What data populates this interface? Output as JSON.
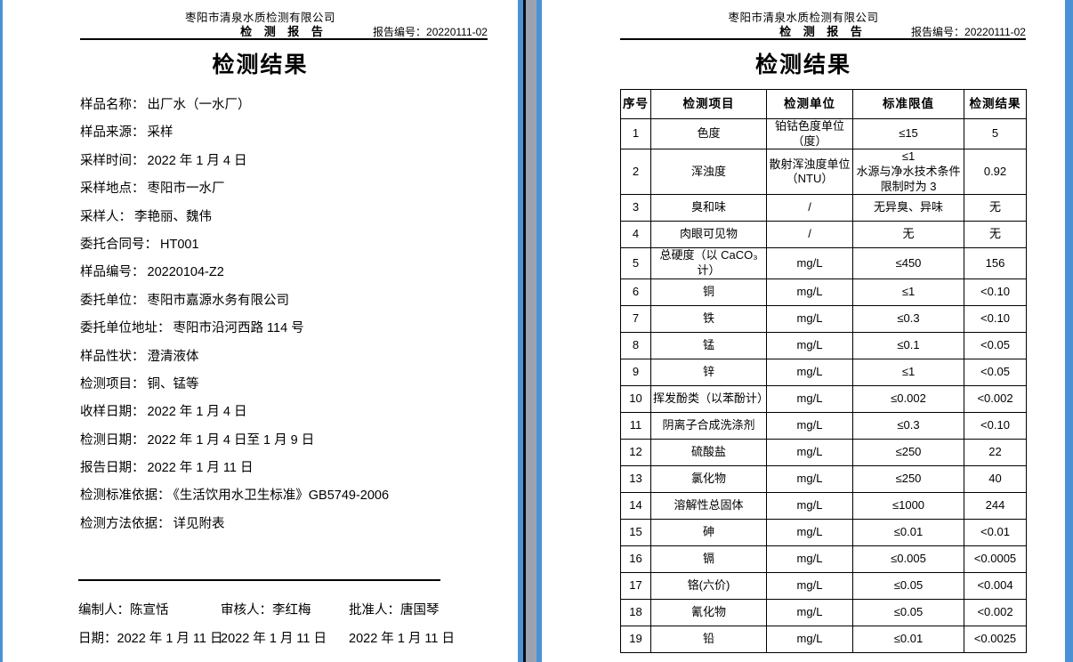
{
  "page_left": {
    "header": {
      "company": "枣阳市清泉水质检测有限公司",
      "doc_title": "检 测 报 告",
      "report_no": "报告编号：20220111-02"
    },
    "title": "检测结果",
    "fields": [
      {
        "label": "样品名称：",
        "value": "出厂水（一水厂）"
      },
      {
        "label": "样品来源：",
        "value": "采样"
      },
      {
        "label": "采样时间：",
        "value": "2022 年 1 月 4 日"
      },
      {
        "label": "采样地点：",
        "value": "枣阳市一水厂"
      },
      {
        "label": "采样人：",
        "value": "李艳丽、魏伟"
      },
      {
        "label": "委托合同号：",
        "value": "HT001"
      },
      {
        "label": "样品编号：",
        "value": "20220104-Z2"
      },
      {
        "label": "委托单位：",
        "value": "枣阳市嘉源水务有限公司"
      },
      {
        "label": "委托单位地址：",
        "value": "枣阳市沿河西路 114 号"
      },
      {
        "label": "样品性状：",
        "value": "澄清液体"
      },
      {
        "label": "检测项目：",
        "value": "铜、锰等"
      },
      {
        "label": "收样日期：",
        "value": "2022 年 1 月 4 日"
      },
      {
        "label": "检测日期：",
        "value": "2022 年 1 月 4 日至 1 月 9 日"
      },
      {
        "label": "报告日期：",
        "value": "2022 年 1 月 11 日"
      },
      {
        "label": "检测标准依据：",
        "value": "《生活饮用水卫生标准》GB5749-2006"
      },
      {
        "label": "检测方法依据：",
        "value": "详见附表"
      }
    ],
    "footer": {
      "signers": [
        {
          "label": "编制人：",
          "value": "陈宣恬"
        },
        {
          "label": "审核人：",
          "value": "李红梅"
        },
        {
          "label": "批准人：",
          "value": "唐国琴"
        }
      ],
      "dates": [
        "日期：2022 年 1 月 11 日",
        "2022 年 1 月 11 日",
        "2022 年 1 月 11 日"
      ]
    }
  },
  "page_right": {
    "header": {
      "company": "枣阳市清泉水质检测有限公司",
      "doc_title": "检 测 报 告",
      "report_no": "报告编号：20220111-02"
    },
    "title": "检测结果",
    "table": {
      "columns": [
        "序号",
        "检测项目",
        "检测单位",
        "标准限值",
        "检测结果"
      ],
      "rows": [
        [
          "1",
          "色度",
          "铂钴色度单位\n（度）",
          "≤15",
          "5"
        ],
        [
          "2",
          "浑浊度",
          "散射浑浊度单位\n（NTU）",
          "≤1\n水源与净水技术条件限制时为 3",
          "0.92"
        ],
        [
          "3",
          "臭和味",
          "/",
          "无异臭、异味",
          "无"
        ],
        [
          "4",
          "肉眼可见物",
          "/",
          "无",
          "无"
        ],
        [
          "5",
          "总硬度（以 CaCO₃ 计）",
          "mg/L",
          "≤450",
          "156"
        ],
        [
          "6",
          "铜",
          "mg/L",
          "≤1",
          "<0.10"
        ],
        [
          "7",
          "铁",
          "mg/L",
          "≤0.3",
          "<0.10"
        ],
        [
          "8",
          "锰",
          "mg/L",
          "≤0.1",
          "<0.05"
        ],
        [
          "9",
          "锌",
          "mg/L",
          "≤1",
          "<0.05"
        ],
        [
          "10",
          "挥发酚类（以苯酚计）",
          "mg/L",
          "≤0.002",
          "<0.002"
        ],
        [
          "11",
          "阴离子合成洗涤剂",
          "mg/L",
          "≤0.3",
          "<0.10"
        ],
        [
          "12",
          "硫酸盐",
          "mg/L",
          "≤250",
          "22"
        ],
        [
          "13",
          "氯化物",
          "mg/L",
          "≤250",
          "40"
        ],
        [
          "14",
          "溶解性总固体",
          "mg/L",
          "≤1000",
          "244"
        ],
        [
          "15",
          "砷",
          "mg/L",
          "≤0.01",
          "<0.01"
        ],
        [
          "16",
          "镉",
          "mg/L",
          "≤0.005",
          "<0.0005"
        ],
        [
          "17",
          "铬(六价)",
          "mg/L",
          "≤0.05",
          "<0.004"
        ],
        [
          "18",
          "氰化物",
          "mg/L",
          "≤0.05",
          "<0.002"
        ],
        [
          "19",
          "铅",
          "mg/L",
          "≤0.01",
          "<0.0025"
        ]
      ]
    }
  }
}
